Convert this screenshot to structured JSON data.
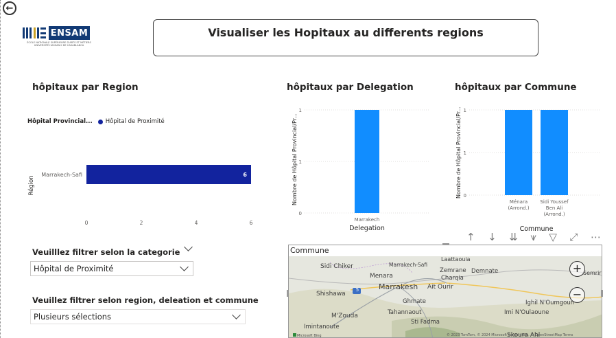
{
  "nav": {
    "back_glyph": "←"
  },
  "logo": {
    "brand": "ENSAM",
    "subtitle_lines": [
      "ÉCOLE NATIONALE SUPÉRIEURE D'ARTS ET MÉTIERS",
      "UNIVERSITÉ HASSAN II DE CASABLANCA"
    ]
  },
  "header": {
    "title": "Visualiser les Hopitaux au differents regions"
  },
  "region_chart": {
    "title": "hôpitaux par Region",
    "legend_title": "Hôpital Provincial...",
    "legend_item": "Hôpital de Proximité",
    "legend_color": "#12239e",
    "y_axis_label": "Région",
    "chart_data": {
      "type": "bar",
      "orientation": "horizontal",
      "categories": [
        "Marrakech-Safi"
      ],
      "series": [
        {
          "name": "Hôpital de Proximité",
          "values": [
            6
          ]
        }
      ],
      "x_ticks": [
        "0",
        "2",
        "4",
        "6"
      ],
      "xlim": [
        0,
        6
      ],
      "data_labels": [
        "6"
      ],
      "ylabel": "Région"
    }
  },
  "delegation_chart": {
    "title": "hôpitaux par Delegation",
    "bar_color": "#118dff",
    "chart_data": {
      "type": "bar",
      "categories": [
        "Marrakech"
      ],
      "values": [
        1
      ],
      "y_ticks": [
        "0",
        "1",
        "1"
      ],
      "ylim": [
        0,
        1
      ],
      "xlabel": "Delegation",
      "ylabel": "Nombre de Hôpital Provincial/Pr..."
    }
  },
  "commune_chart": {
    "title": "hôpitaux par Commune",
    "bar_color": "#118dff",
    "chart_data": {
      "type": "bar",
      "categories": [
        [
          "Ménara",
          "(Arrond.)"
        ],
        [
          "Sidi Youssef",
          "Ben Ali",
          "(Arrond.)"
        ]
      ],
      "values": [
        1,
        1
      ],
      "y_ticks": [
        "0",
        "1",
        "1"
      ],
      "ylim": [
        0,
        1
      ],
      "xlabel": "Commune",
      "ylabel": "Nombre de Hôpital Provincial/Pr..."
    }
  },
  "filters": {
    "category_title": "Veuilllez filtrer selon la categorie",
    "category_value": "Hôpital de Proximité",
    "location_title": "Veuillez filtrer selon region, deleation et commune",
    "location_value": "Plusieurs sélections"
  },
  "visual_toolbar": {
    "icons": [
      "arrow-up-icon",
      "arrow-down-icon",
      "double-arrow-down-icon",
      "expand-hierarchy-icon",
      "filter-icon",
      "focus-mode-icon",
      "more-options-icon"
    ],
    "glyphs": [
      "↑",
      "↓",
      "⇊",
      "⩛",
      "▽",
      "⤢",
      "⋯"
    ]
  },
  "map": {
    "title": "Commune",
    "zoom_in": "+",
    "zoom_out": "−",
    "places": [
      "Sidi Chiker",
      "Marrakech-Safi",
      "Laattaouia",
      "Zemrane",
      "Demnate",
      "Charqia",
      "Menara",
      "Marrakesh",
      "Ait Ourir",
      "Shishawa",
      "Ghmate",
      "Ighil N'Oumgoun",
      "M'Zouda",
      "Tahannaout",
      "Imi N'Oulaoune",
      "Sti Fadma",
      "Imintanoute",
      "Skoura Ahl",
      "Semrir"
    ],
    "road_badge": "5",
    "attribution": "© 2023 TomTom, © 2024 Microsoft Corporation, © OpenStreetMap  Terms",
    "bing_label": "Microsoft Bing"
  }
}
